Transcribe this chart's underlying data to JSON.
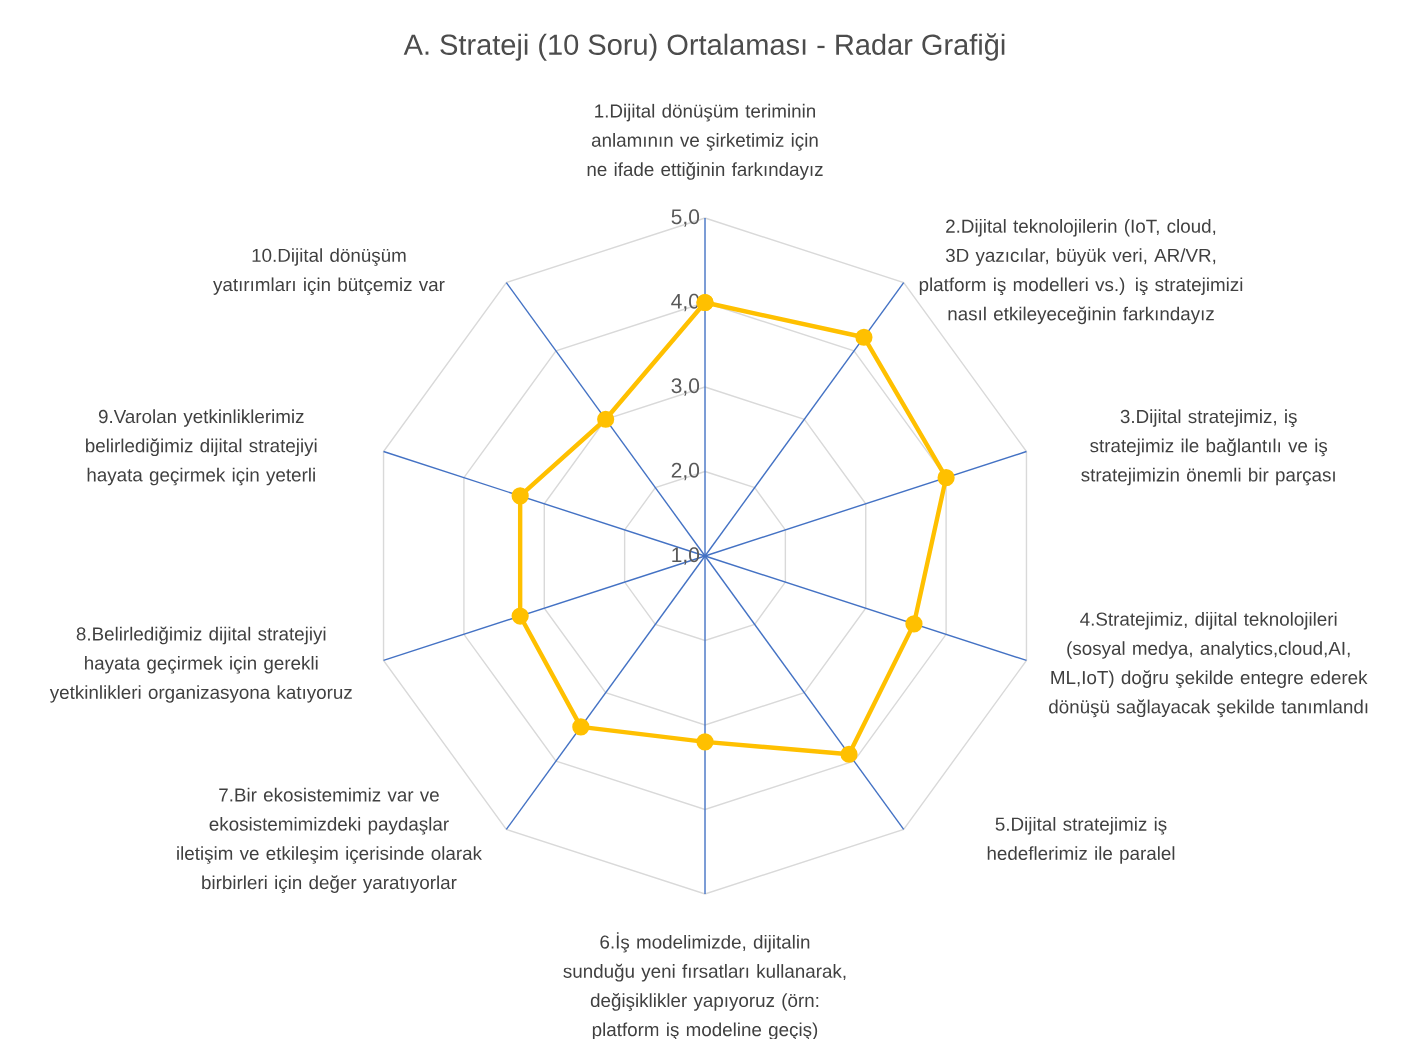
{
  "chart_data": {
    "type": "radar",
    "title": "A. Strateji (10 Soru) Ortalaması - Radar Grafiği",
    "categories": [
      "1.Dijital dönüşüm teriminin anlamının ve şirketimiz için ne ifade ettiğinin farkındayız",
      "2.Dijital teknolojilerin (IoT, cloud, 3D yazıcılar, büyük veri, AR/VR, platform iş modelleri vs.) iş stratejimizi nasıl etkileyeceğinin farkındayız",
      "3.Dijital stratejimiz, iş stratejimiz ile bağlantılı ve iş stratejimizin önemli bir parçası",
      "4.Stratejimiz, dijital teknolojileri (sosyal medya, analytics,cloud,AI, ML,IoT) doğru şekilde entegre ederek dönüşü sağlayacak şekilde tanımlandı",
      "5.Dijital stratejimiz iş hedeflerimiz ile paralel",
      "6.İş modelimizde, dijitalin sunduğu yeni fırsatları kullanarak, değişiklikler yapıyoruz (örn: platform iş modeline geçiş)",
      "7.Bir ekosistemimiz var ve ekosistemimizdeki paydaşlar iletişim ve etkileşim içerisinde olarak birbirleri için değer yaratıyorlar",
      "8.Belirlediğimiz dijital stratejiyi hayata geçirmek için gerekli yetkinlikleri organizasyona katıyoruz",
      "9.Varolan yetkinliklerimiz belirlediğimiz dijital stratejiyi hayata geçirmek için yeterli",
      "10.Dijital dönüşüm yatırımları için bütçemiz var"
    ],
    "series": [
      {
        "color": "#ffc000",
        "values": [
          4.0,
          4.2,
          4.0,
          3.6,
          3.9,
          3.2,
          3.5,
          3.3,
          3.3,
          3.0
        ]
      }
    ],
    "ylim": [
      1,
      5
    ],
    "yticks": [
      {
        "value": 1,
        "label": "1,0"
      },
      {
        "value": 2,
        "label": "2,0"
      },
      {
        "value": 3,
        "label": "3,0"
      },
      {
        "value": 4,
        "label": "4,0"
      },
      {
        "value": 5,
        "label": "5,0"
      }
    ],
    "grid": true,
    "marker": "circle"
  }
}
